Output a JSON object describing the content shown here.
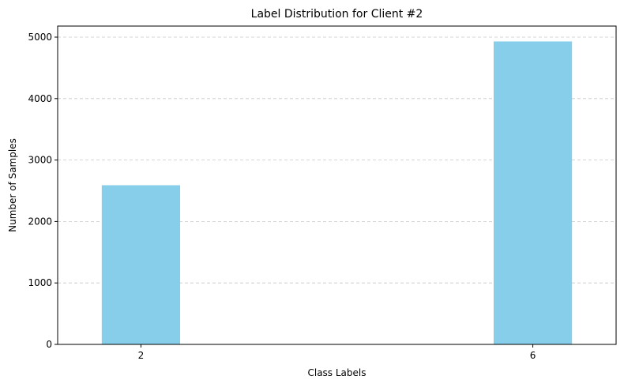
{
  "chart_data": {
    "type": "bar",
    "title": "Label Distribution for Client #2",
    "xlabel": "Class Labels",
    "ylabel": "Number of Samples",
    "categories": [
      "2",
      "6"
    ],
    "x_positions": [
      2,
      6
    ],
    "values": [
      2590,
      4930
    ],
    "xlim": [
      1.15,
      6.85
    ],
    "ylim": [
      0,
      5180
    ],
    "yticks": [
      0,
      1000,
      2000,
      3000,
      4000,
      5000
    ],
    "bar_color": "#87ceeb",
    "grid": "y-dashed"
  }
}
